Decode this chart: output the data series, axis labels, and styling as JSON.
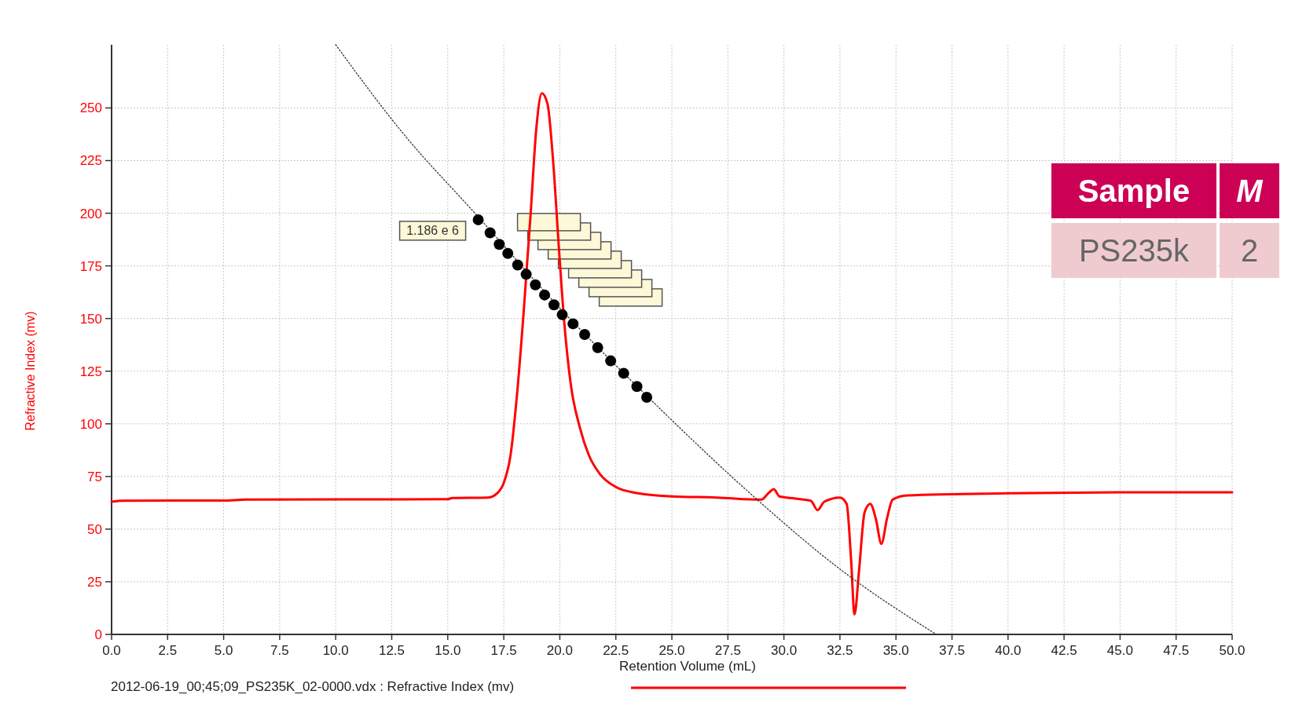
{
  "chart_data": {
    "type": "line",
    "xlabel": "Retention Volume (mL)",
    "ylabel": "Refractive Index (mv)",
    "xlim": [
      0,
      50
    ],
    "ylim": [
      0,
      280
    ],
    "xticks": [
      {
        "value": 0,
        "label": "0.0"
      },
      {
        "value": 2.5,
        "label": "2.5"
      },
      {
        "value": 5,
        "label": "5.0"
      },
      {
        "value": 7.5,
        "label": "7.5"
      },
      {
        "value": 10,
        "label": "10.0"
      },
      {
        "value": 12.5,
        "label": "12.5"
      },
      {
        "value": 15,
        "label": "15.0"
      },
      {
        "value": 17.5,
        "label": "17.5"
      },
      {
        "value": 20,
        "label": "20.0"
      },
      {
        "value": 22.5,
        "label": "22.5"
      },
      {
        "value": 25,
        "label": "25.0"
      },
      {
        "value": 27.5,
        "label": "27.5"
      },
      {
        "value": 30,
        "label": "30.0"
      },
      {
        "value": 32.5,
        "label": "32.5"
      },
      {
        "value": 35,
        "label": "35.0"
      },
      {
        "value": 37.5,
        "label": "37.5"
      },
      {
        "value": 40,
        "label": "40.0"
      },
      {
        "value": 42.5,
        "label": "42.5"
      },
      {
        "value": 45,
        "label": "45.0"
      },
      {
        "value": 47.5,
        "label": "47.5"
      },
      {
        "value": 50,
        "label": "50.0"
      }
    ],
    "yticks": [
      0,
      25,
      50,
      75,
      100,
      125,
      150,
      175,
      200,
      225,
      250
    ],
    "grid": true,
    "legend": "bottom",
    "series": [
      {
        "name": "2012-06-19_00;45;09_PS235K_02-0000.vdx : Refractive Index (mv)",
        "color": "#ff0000",
        "x": [
          0,
          0.5,
          5,
          6,
          15,
          15.2,
          16.8,
          17.2,
          17.5,
          17.8,
          18.1,
          18.4,
          18.7,
          18.95,
          19.2,
          19.45,
          19.7,
          19.95,
          20.2,
          20.5,
          20.9,
          21.3,
          21.8,
          22.5,
          23.5,
          25,
          27,
          29,
          29.3,
          29.55,
          29.8,
          30.5,
          31.2,
          31.5,
          31.8,
          32.5,
          32.8,
          33,
          33.15,
          33.35,
          33.6,
          33.85,
          34.1,
          34.35,
          34.6,
          34.85,
          35.5,
          40,
          45,
          50
        ],
        "values": [
          63,
          63.5,
          63.6,
          64,
          64.2,
          64.8,
          65,
          67,
          72,
          85,
          115,
          155,
          200,
          240,
          257,
          252,
          225,
          185,
          148,
          118,
          98,
          85,
          76,
          70,
          67,
          65.5,
          65,
          64,
          67,
          69,
          65.5,
          64.5,
          63.5,
          59,
          63,
          65,
          62,
          35,
          9.5,
          30,
          58,
          62,
          55,
          43,
          55,
          64,
          66,
          67,
          67.5,
          67.5
        ]
      },
      {
        "type": "line",
        "line_style": "dotted",
        "color": "#333333",
        "x": [
          10,
          13,
          16.3,
          20,
          24.1,
          28.7,
          32.5,
          36.8
        ],
        "values": [
          280,
          238,
          199,
          155,
          111,
          65,
          31,
          0
        ]
      },
      {
        "type": "scatter",
        "marker": "circle",
        "color": "#000000",
        "x": [
          16.36,
          16.89,
          17.3,
          17.68,
          18.12,
          18.5,
          18.91,
          19.32,
          19.74,
          20.11,
          20.59,
          21.11,
          21.69,
          22.27,
          22.85,
          23.44,
          23.88
        ],
        "values": [
          196.9,
          190.7,
          185.2,
          180.9,
          175.4,
          171,
          166,
          161.2,
          156.5,
          151.8,
          147.5,
          142.4,
          136.2,
          129.9,
          124,
          117.7,
          112.6
        ]
      }
    ],
    "annotations": [
      {
        "text": "1.186 e 6",
        "x": 16.36,
        "y": 196.9
      },
      "Sample",
      "M",
      "PS235k",
      "2"
    ]
  }
}
